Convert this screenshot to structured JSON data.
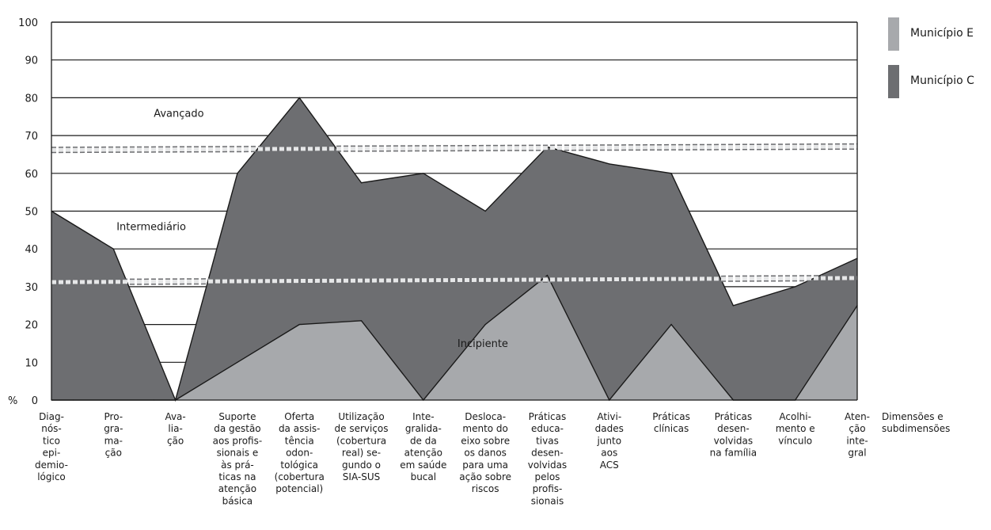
{
  "chart_data": {
    "type": "area",
    "ylim": [
      0,
      100
    ],
    "yticks": [
      0,
      10,
      20,
      30,
      40,
      50,
      60,
      70,
      80,
      90,
      100
    ],
    "ylabel": "%",
    "xlabel": "Dimensões e subdimensões",
    "grid": true,
    "legend_position": "top-right",
    "categories": [
      "Diagnóstico epidemiológico",
      "Programação",
      "Avaliação",
      "Suporte da gestão aos profissionais e às práticas na atenção básica",
      "Oferta da assistência odontológica (cobertura potencial)",
      "Utilização de serviços (cobertura real) segundo o SIA-SUS",
      "Integralidade da atenção em saúde bucal",
      "Deslocamento do eixo sobre os danos para uma ação sobre riscos",
      "Práticas educativas desenvolvidas pelos profissionais",
      "Atividades junto aos ACS",
      "Práticas clínicas",
      "Práticas desenvolvidas na família",
      "Acolhimento e vínculo",
      "Atenção integral"
    ],
    "category_lines": [
      [
        "Diag-",
        "nós-",
        "tico",
        "epi-",
        "demio-",
        "lógico"
      ],
      [
        "Pro-",
        "gra-",
        "ma-",
        "ção"
      ],
      [
        "Ava-",
        "lia-",
        "ção"
      ],
      [
        "Suporte",
        "da gestão",
        "aos profis-",
        "sionais e",
        "às prá-",
        "ticas na",
        "atenção",
        "básica"
      ],
      [
        "Oferta",
        "da assis-",
        "tência",
        "odon-",
        "tológica",
        "(cobertura",
        "potencial)"
      ],
      [
        "Utilização",
        "de serviços",
        "(cobertura",
        "real) se-",
        "gundo o",
        "SIA-SUS"
      ],
      [
        "Inte-",
        "gralida-",
        "de da",
        "atenção",
        "em saúde",
        "bucal"
      ],
      [
        "Desloca-",
        "mento do",
        "eixo sobre",
        "os danos",
        "para uma",
        "ação sobre",
        "riscos"
      ],
      [
        "Práticas",
        "educa-",
        "tivas",
        "desen-",
        "volvidas",
        "pelos",
        "profis-",
        "sionais"
      ],
      [
        "Ativi-",
        "dades",
        "junto",
        "aos",
        "ACS"
      ],
      [
        "Práticas",
        "clínicas"
      ],
      [
        "Práticas",
        "desen-",
        "volvidas",
        "na família"
      ],
      [
        "Acolhi-",
        "mento e",
        "vínculo"
      ],
      [
        "Aten-",
        "ção",
        "inte-",
        "gral"
      ]
    ],
    "xlabel_lines": [
      "Dimensões e",
      "subdimensões"
    ],
    "series": [
      {
        "name": "Município C",
        "color": "#6d6e71",
        "x": [
          0,
          1,
          2,
          3,
          4,
          5,
          6,
          7,
          8,
          9,
          10,
          11,
          12,
          13
        ],
        "values": [
          50,
          40,
          0,
          60,
          80,
          57.5,
          60,
          50,
          67,
          62.5,
          60,
          25,
          30,
          37.5
        ]
      },
      {
        "name": "Município E",
        "color": "#a7a9ac",
        "x": [
          0,
          0.35,
          1.65,
          2,
          3,
          4,
          5,
          6,
          7,
          8,
          9,
          10,
          11,
          12,
          13
        ],
        "values": [
          0,
          0,
          0,
          0,
          10,
          20,
          21,
          0,
          20,
          33,
          0,
          20,
          0,
          0,
          25
        ]
      }
    ],
    "thresholds": [
      {
        "name": "upper",
        "start": 66.2,
        "end": 67.1
      },
      {
        "name": "lower",
        "start": 31.2,
        "end": 32.3
      }
    ],
    "annotations": [
      {
        "text": "Avançado",
        "x": 1.65,
        "y": 75
      },
      {
        "text": "Intermediário",
        "x": 1.05,
        "y": 45
      },
      {
        "text": "Incipiente",
        "x": 6.55,
        "y": 14
      }
    ]
  }
}
